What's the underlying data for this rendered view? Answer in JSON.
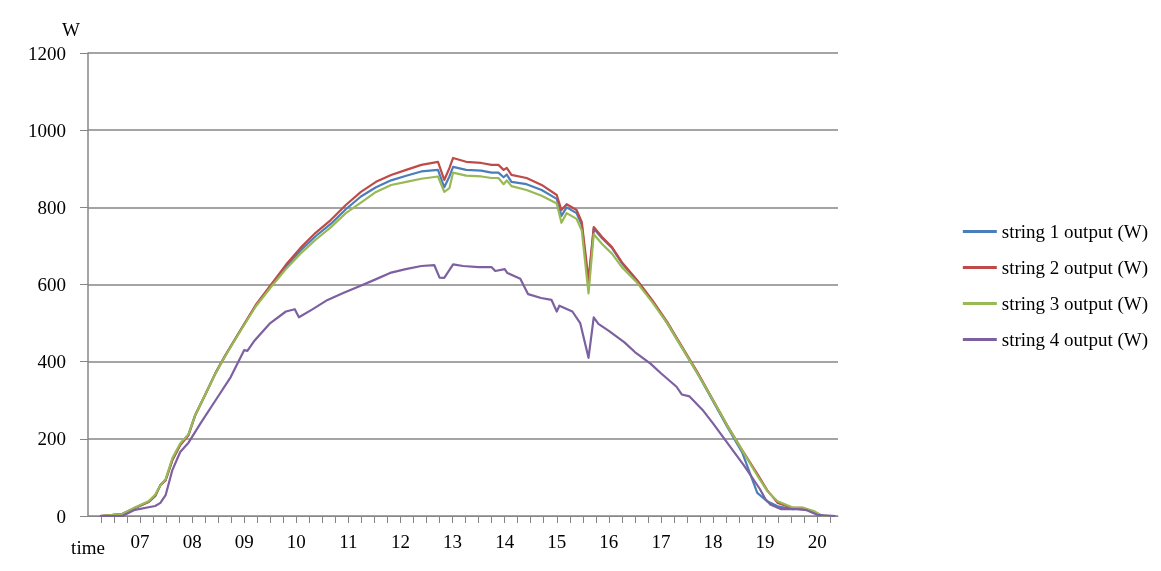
{
  "chart_data": {
    "type": "line",
    "xlabel": "time",
    "ylabel": "W",
    "xlim": [
      6,
      20.4
    ],
    "ylim": [
      0,
      1200
    ],
    "xticks": [
      {
        "value": 7,
        "label": "07"
      },
      {
        "value": 8,
        "label": "08"
      },
      {
        "value": 9,
        "label": "09"
      },
      10,
      11,
      12,
      13,
      14,
      15,
      16,
      17,
      18,
      19,
      20
    ],
    "yticks": [
      0,
      200,
      400,
      600,
      800,
      1000,
      1200
    ],
    "grid": "y",
    "legend": "right",
    "marker": "none",
    "line_style": "solid",
    "x": [
      6.23,
      6.66,
      6.9,
      7.16,
      7.29,
      7.39,
      7.49,
      7.62,
      7.77,
      7.93,
      8.06,
      8.25,
      8.45,
      8.64,
      8.93,
      9.22,
      9.51,
      9.8,
      10.08,
      10.37,
      10.66,
      10.95,
      11.24,
      11.53,
      11.82,
      12.11,
      12.4,
      12.72,
      12.84,
      12.94,
      13.01,
      13.26,
      13.55,
      13.75,
      13.88,
      13.98,
      14.04,
      14.13,
      14.42,
      14.71,
      15.0,
      15.09,
      15.19,
      15.38,
      15.48,
      15.61,
      15.71,
      15.87,
      16.06,
      16.25,
      16.54,
      16.83,
      17.12,
      17.41,
      17.7,
      17.98,
      18.27,
      18.56,
      18.85,
      19.04,
      19.24,
      19.53,
      19.72,
      19.95,
      20.1,
      20.35
    ],
    "series": [
      {
        "name": "string 1 output (W)",
        "color": "#4a7ebb",
        "values": [
          0,
          5,
          21,
          36,
          52,
          80,
          93,
          145,
          184,
          210,
          262,
          314,
          371,
          417,
          482,
          545,
          597,
          645,
          688,
          725,
          757,
          795,
          828,
          852,
          870,
          882,
          893,
          897,
          852,
          880,
          905,
          897,
          895,
          890,
          890,
          878,
          885,
          866,
          860,
          845,
          822,
          778,
          800,
          785,
          755,
          600,
          745,
          720,
          695,
          655,
          610,
          558,
          500,
          435,
          370,
          303,
          232,
          165,
          60,
          38,
          25,
          18,
          20,
          10,
          0,
          0
        ]
      },
      {
        "name": "string 2 output (W)",
        "color": "#be4b48",
        "values": [
          0,
          5,
          21,
          36,
          52,
          80,
          93,
          145,
          184,
          210,
          262,
          314,
          371,
          417,
          482,
          547,
          599,
          651,
          695,
          734,
          767,
          806,
          840,
          866,
          884,
          897,
          910,
          918,
          871,
          902,
          928,
          918,
          915,
          910,
          910,
          897,
          902,
          884,
          876,
          858,
          832,
          793,
          808,
          793,
          762,
          612,
          749,
          723,
          697,
          658,
          612,
          560,
          503,
          438,
          373,
          306,
          236,
          171,
          109,
          67,
          34,
          21,
          21,
          null,
          null,
          null
        ]
      },
      {
        "name": "string 3 output (W)",
        "color": "#98b954",
        "values": [
          0,
          5,
          22,
          38,
          55,
          80,
          95,
          150,
          188,
          212,
          262,
          314,
          370,
          416,
          480,
          543,
          593,
          640,
          680,
          716,
          748,
          785,
          812,
          840,
          858,
          866,
          874,
          880,
          840,
          850,
          890,
          882,
          880,
          876,
          876,
          860,
          870,
          855,
          845,
          830,
          810,
          760,
          785,
          770,
          740,
          577,
          730,
          705,
          680,
          645,
          605,
          555,
          500,
          435,
          370,
          305,
          235,
          170,
          105,
          65,
          38,
          22,
          22,
          12,
          0,
          0
        ]
      },
      {
        "name": "string 4 output (W)",
        "color": "#7d60a0",
        "x": [
          6.23,
          6.66,
          6.9,
          7.29,
          7.39,
          7.49,
          7.62,
          7.77,
          7.93,
          8.16,
          8.45,
          8.74,
          9.0,
          9.06,
          9.2,
          9.5,
          9.8,
          9.97,
          10.05,
          10.3,
          10.6,
          10.9,
          11.2,
          11.5,
          11.8,
          12.1,
          12.4,
          12.65,
          12.75,
          12.84,
          13.01,
          13.2,
          13.5,
          13.75,
          13.82,
          14.0,
          14.05,
          14.3,
          14.45,
          14.7,
          14.9,
          15.0,
          15.05,
          15.3,
          15.45,
          15.61,
          15.71,
          15.8,
          16.0,
          16.3,
          16.5,
          16.8,
          17.0,
          17.3,
          17.4,
          17.55,
          17.8,
          18.0,
          18.3,
          18.6,
          18.9,
          19.0,
          19.1,
          19.3,
          19.6,
          19.8,
          20.0,
          20.35
        ],
        "values": [
          0,
          0,
          16,
          26,
          34,
          54,
          119,
          166,
          190,
          240,
          300,
          360,
          430,
          428,
          455,
          500,
          530,
          536,
          515,
          535,
          560,
          578,
          595,
          612,
          630,
          640,
          648,
          650,
          618,
          617,
          652,
          648,
          645,
          645,
          635,
          640,
          630,
          615,
          575,
          565,
          560,
          530,
          545,
          530,
          500,
          410,
          515,
          498,
          480,
          450,
          425,
          395,
          370,
          335,
          315,
          310,
          275,
          240,
          185,
          130,
          70,
          45,
          30,
          18,
          18,
          15,
          3,
          0
        ]
      }
    ]
  }
}
